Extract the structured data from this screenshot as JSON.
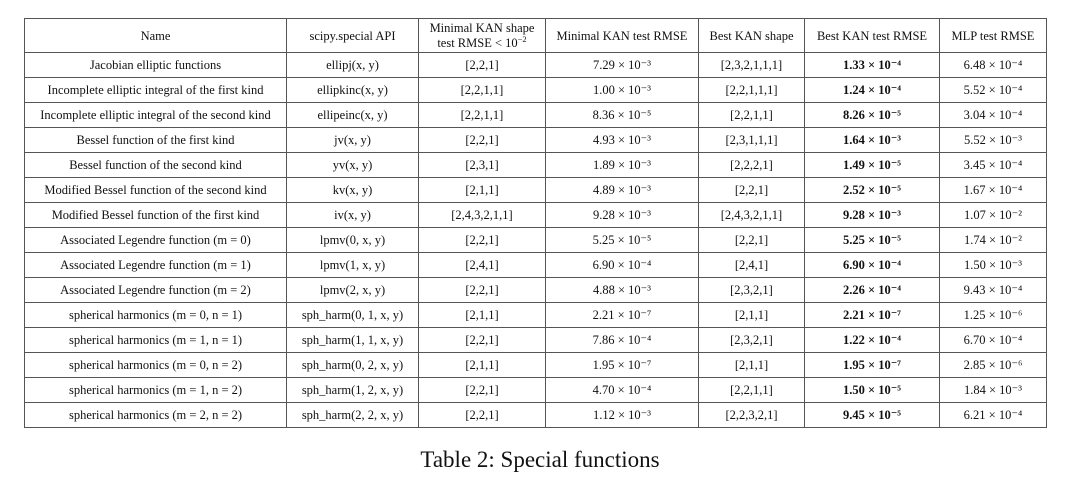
{
  "table": {
    "headers": [
      "Name",
      "scipy.special API",
      "Minimal KAN shape test RMSE < 10⁻²",
      "Minimal KAN test RMSE",
      "Best KAN shape",
      "Best KAN test RMSE",
      "MLP test RMSE"
    ],
    "rows": [
      [
        "Jacobian elliptic functions",
        "ellipj(x, y)",
        "[2,2,1]",
        "7.29 × 10⁻³",
        "[2,3,2,1,1,1]",
        "1.33 × 10⁻⁴",
        "6.48 × 10⁻⁴"
      ],
      [
        "Incomplete elliptic integral of the first kind",
        "ellipkinc(x, y)",
        "[2,2,1,1]",
        "1.00 × 10⁻³",
        "[2,2,1,1,1]",
        "1.24 × 10⁻⁴",
        "5.52 × 10⁻⁴"
      ],
      [
        "Incomplete elliptic integral of the second kind",
        "ellipeinc(x, y)",
        "[2,2,1,1]",
        "8.36 × 10⁻⁵",
        "[2,2,1,1]",
        "8.26 × 10⁻⁵",
        "3.04 × 10⁻⁴"
      ],
      [
        "Bessel function of the first kind",
        "jv(x, y)",
        "[2,2,1]",
        "4.93 × 10⁻³",
        "[2,3,1,1,1]",
        "1.64 × 10⁻³",
        "5.52 × 10⁻³"
      ],
      [
        "Bessel function of the second kind",
        "yv(x, y)",
        "[2,3,1]",
        "1.89 × 10⁻³",
        "[2,2,2,1]",
        "1.49 × 10⁻⁵",
        "3.45 × 10⁻⁴"
      ],
      [
        "Modified Bessel function of the second kind",
        "kv(x, y)",
        "[2,1,1]",
        "4.89 × 10⁻³",
        "[2,2,1]",
        "2.52 × 10⁻⁵",
        "1.67 × 10⁻⁴"
      ],
      [
        "Modified Bessel function of the first kind",
        "iv(x, y)",
        "[2,4,3,2,1,1]",
        "9.28 × 10⁻³",
        "[2,4,3,2,1,1]",
        "9.28 × 10⁻³",
        "1.07 × 10⁻²"
      ],
      [
        "Associated Legendre function (m = 0)",
        "lpmv(0, x, y)",
        "[2,2,1]",
        "5.25 × 10⁻⁵",
        "[2,2,1]",
        "5.25 × 10⁻⁵",
        "1.74 × 10⁻²"
      ],
      [
        "Associated Legendre function (m = 1)",
        "lpmv(1, x, y)",
        "[2,4,1]",
        "6.90 × 10⁻⁴",
        "[2,4,1]",
        "6.90 × 10⁻⁴",
        "1.50 × 10⁻³"
      ],
      [
        "Associated Legendre function (m = 2)",
        "lpmv(2, x, y)",
        "[2,2,1]",
        "4.88 × 10⁻³",
        "[2,3,2,1]",
        "2.26 × 10⁻⁴",
        "9.43 × 10⁻⁴"
      ],
      [
        "spherical harmonics (m = 0, n = 1)",
        "sph_harm(0, 1, x, y)",
        "[2,1,1]",
        "2.21 × 10⁻⁷",
        "[2,1,1]",
        "2.21 × 10⁻⁷",
        "1.25 × 10⁻⁶"
      ],
      [
        "spherical harmonics (m = 1, n = 1)",
        "sph_harm(1, 1, x, y)",
        "[2,2,1]",
        "7.86 × 10⁻⁴",
        "[2,3,2,1]",
        "1.22 × 10⁻⁴",
        "6.70 × 10⁻⁴"
      ],
      [
        "spherical harmonics (m = 0, n = 2)",
        "sph_harm(0, 2, x, y)",
        "[2,1,1]",
        "1.95 × 10⁻⁷",
        "[2,1,1]",
        "1.95 × 10⁻⁷",
        "2.85 × 10⁻⁶"
      ],
      [
        "spherical harmonics (m = 1, n = 2)",
        "sph_harm(1, 2, x, y)",
        "[2,2,1]",
        "4.70 × 10⁻⁴",
        "[2,2,1,1]",
        "1.50 × 10⁻⁵",
        "1.84 × 10⁻³"
      ],
      [
        "spherical harmonics (m = 2, n = 2)",
        "sph_harm(2, 2, x, y)",
        "[2,2,1]",
        "1.12 × 10⁻³",
        "[2,2,3,2,1]",
        "9.45 × 10⁻⁵",
        "6.21 × 10⁻⁴"
      ]
    ]
  },
  "caption": "Table 2: Special functions"
}
